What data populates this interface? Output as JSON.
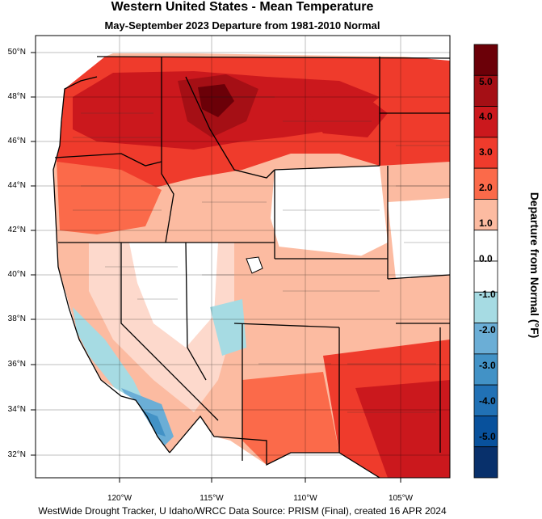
{
  "title": "Western United States - Mean Temperature",
  "subtitle": "May-September 2023  Departure from 1981-2010 Normal",
  "footer": "WestWide Drought Tracker, U Idaho/WRCC Data Source: PRISM (Final), created 16 APR 2024",
  "colorbar": {
    "title": "Departure from Normal (°F)",
    "labels": [
      "5.0",
      "4.0",
      "3.0",
      "2.0",
      "1.0",
      "0.0",
      "-1.0",
      "-2.0",
      "-3.0",
      "-4.0",
      "-5.0"
    ],
    "colors": [
      "#6b0008",
      "#a50f15",
      "#cb181d",
      "#ef3b2c",
      "#fb6a4a",
      "#fcbba1",
      "#ffffff",
      "#ffffff",
      "#a6dbe3",
      "#6baed6",
      "#4292c6",
      "#2171b5",
      "#08519c",
      "#08306b"
    ]
  },
  "lat_labels": [
    "50°N",
    "48°N",
    "46°N",
    "44°N",
    "42°N",
    "40°N",
    "38°N",
    "36°N",
    "34°N",
    "32°N"
  ],
  "lon_labels": [
    "120°W",
    "115°W",
    "110°W",
    "105°W"
  ]
}
